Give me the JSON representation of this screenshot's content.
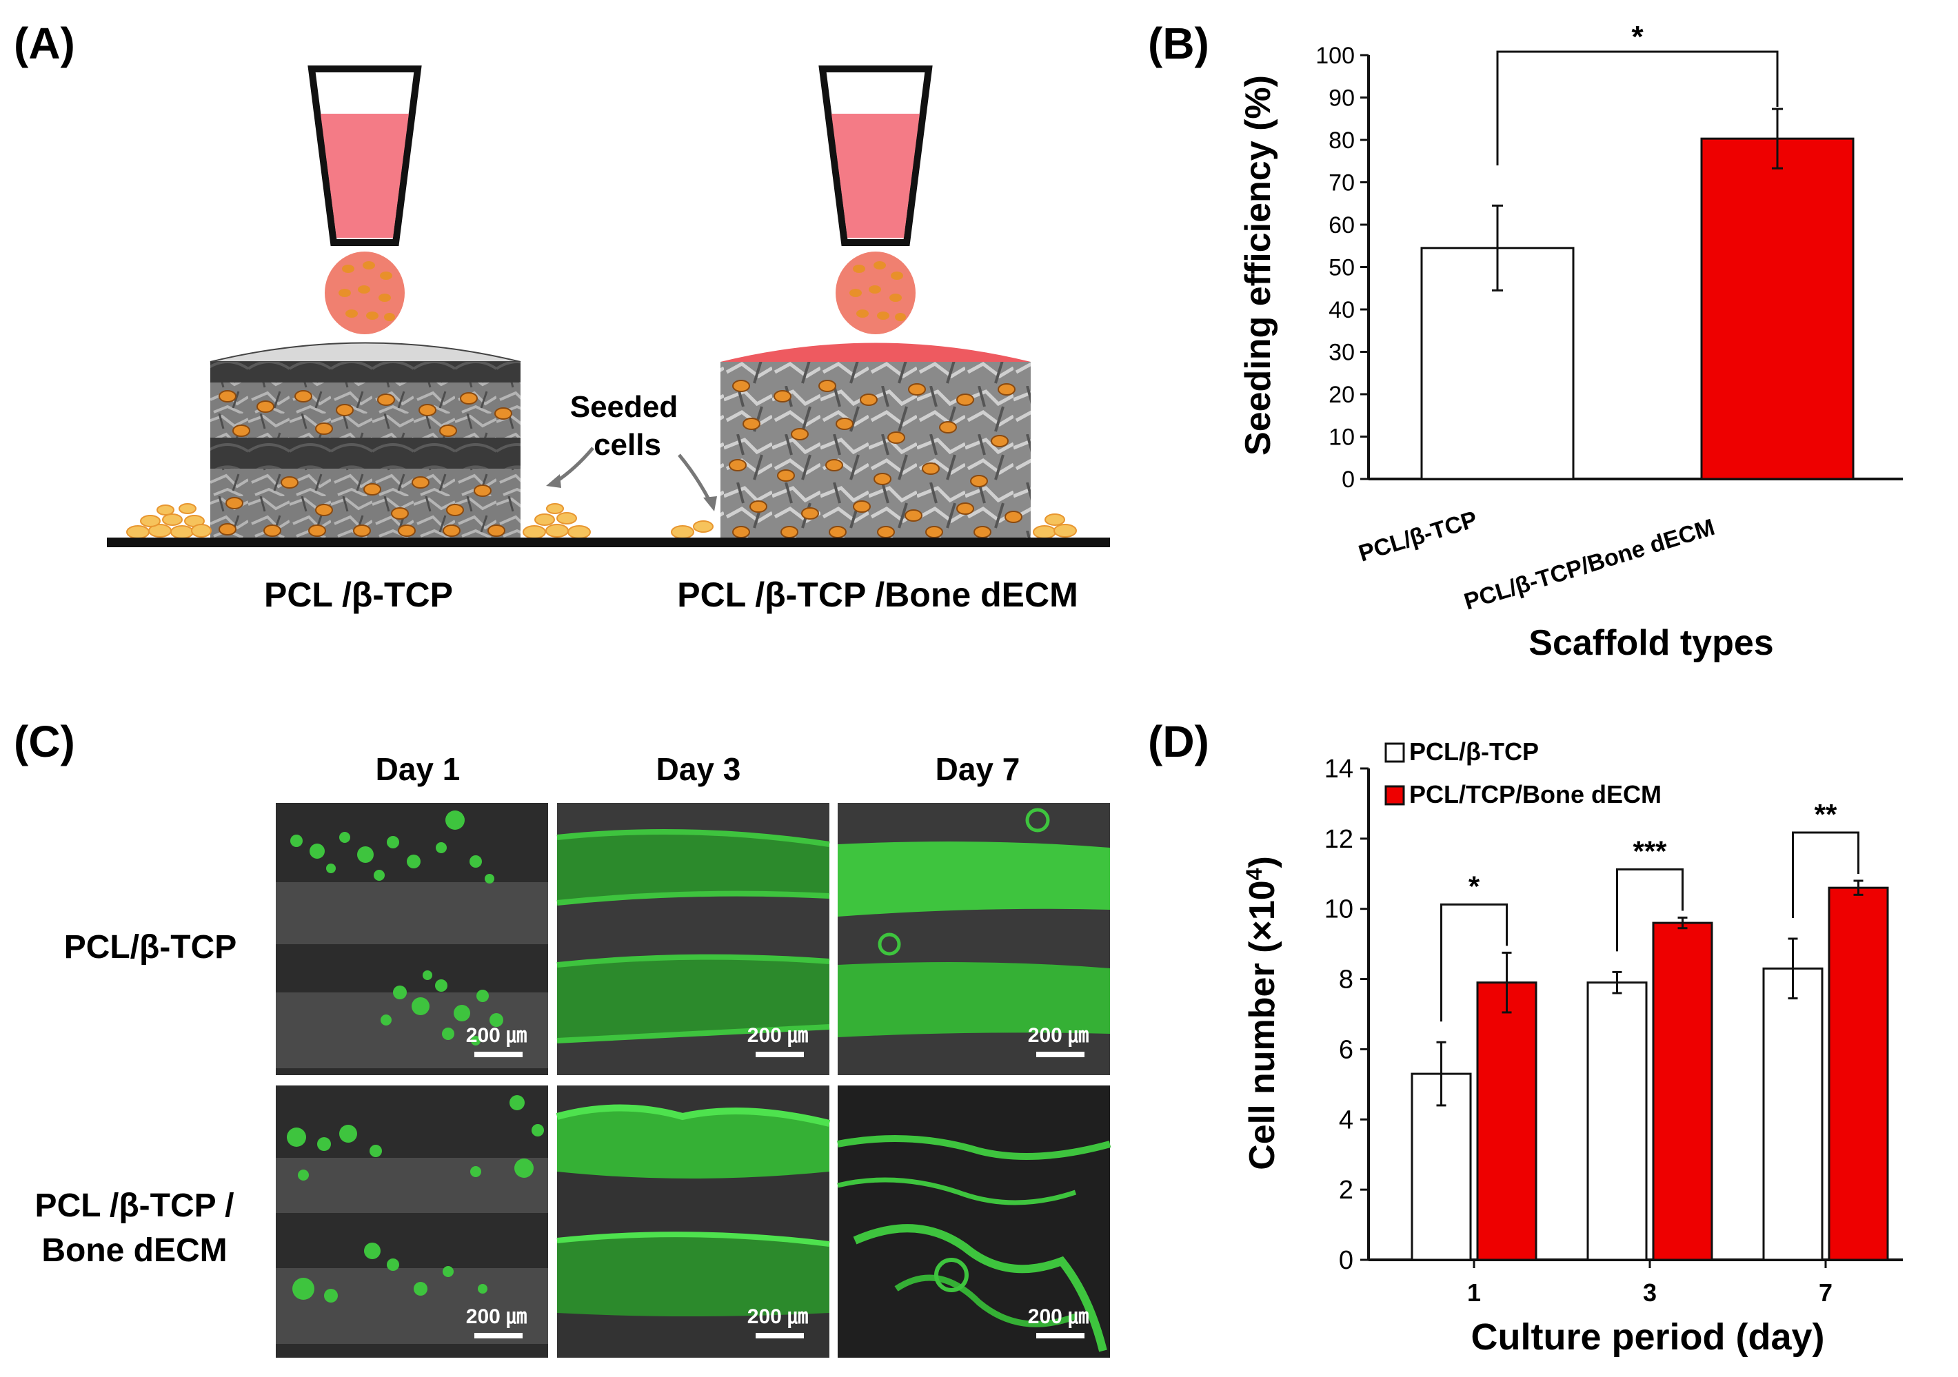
{
  "panel_labels": {
    "A": "(A)",
    "B": "(B)",
    "C": "(C)",
    "D": "(D)"
  },
  "panel_a": {
    "scaffold_left_label": "PCL /β-TCP",
    "scaffold_right_label": "PCL /β-TCP /Bone dECM",
    "seeded_cells_line1": "Seeded",
    "seeded_cells_line2": "cells",
    "colors": {
      "medium": "#f47b86",
      "drop": "#f08070",
      "cell": "#e8902a",
      "dome_left": "#d9d9d9",
      "dome_right": "#ee5a60"
    }
  },
  "panel_c": {
    "columns": [
      "Day 1",
      "Day 3",
      "Day 7"
    ],
    "rows": [
      "PCL/β-TCP",
      "PCL /β-TCP /",
      "Bone dECM"
    ],
    "scale_bar_label": "200 ㎛",
    "colors": {
      "fluorescence": "#3ec43e",
      "background": "#2a2a2a"
    }
  },
  "chart_data": [
    {
      "panel": "B",
      "type": "bar",
      "categories": [
        "PCL/β-TCP",
        "PCL/β-TCP/Bone dECM"
      ],
      "values": [
        54.5,
        80.3
      ],
      "errors": [
        10,
        7
      ],
      "colors": [
        "#ffffff",
        "#ee0000"
      ],
      "ylabel": "Seeding efficiency (%)",
      "xlabel": "Scaffold types",
      "ylim": [
        0,
        100
      ],
      "yticks": [
        0,
        10,
        20,
        30,
        40,
        50,
        60,
        70,
        80,
        90,
        100
      ],
      "significance": [
        {
          "between": [
            0,
            1
          ],
          "label": "*"
        }
      ]
    },
    {
      "panel": "D",
      "type": "bar",
      "categories": [
        "1",
        "3",
        "7"
      ],
      "series": [
        {
          "name": "PCL/β-TCP",
          "values": [
            5.3,
            7.9,
            8.3
          ],
          "errors": [
            0.9,
            0.3,
            0.85
          ],
          "color": "#ffffff"
        },
        {
          "name": "PCL/TCP/Bone dECM",
          "values": [
            7.9,
            9.6,
            10.6
          ],
          "errors": [
            0.85,
            0.15,
            0.2
          ],
          "color": "#ee0000"
        }
      ],
      "ylabel_main": "Cell number (×10",
      "ylabel_sup": "4",
      "ylabel_close": ")",
      "xlabel": "Culture period (day)",
      "ylim": [
        0,
        14
      ],
      "yticks": [
        0,
        2,
        4,
        6,
        8,
        10,
        12,
        14
      ],
      "legend_position": "top-left",
      "significance": [
        "*",
        "***",
        "**"
      ]
    }
  ]
}
